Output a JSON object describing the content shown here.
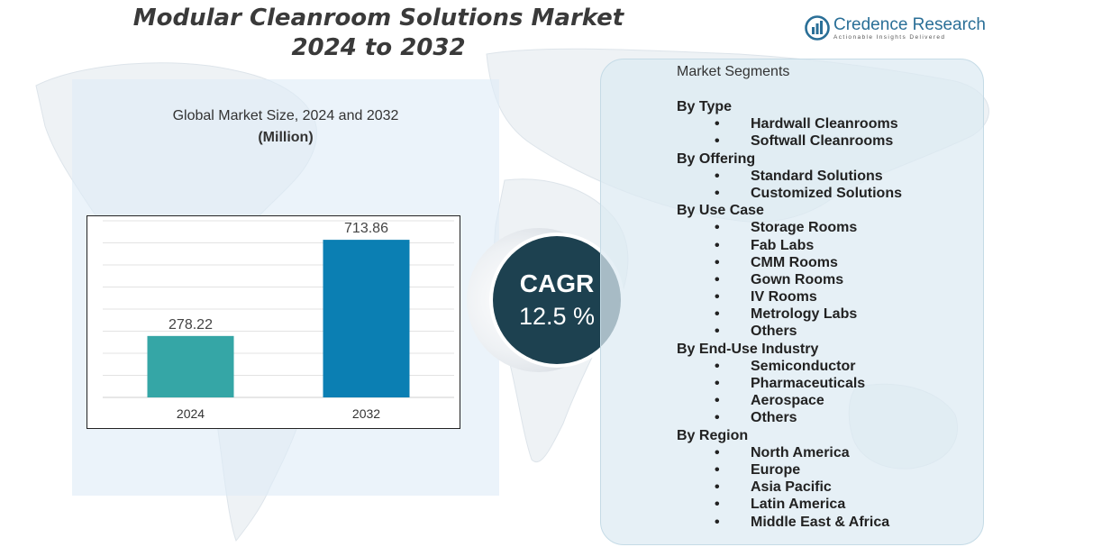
{
  "header": {
    "title_line1": "Modular Cleanroom Solutions Market",
    "title_line2": "2024 to 2032"
  },
  "logo": {
    "name": "Credence Research",
    "tagline": "Actionable Insights Delivered",
    "brand_color": "#2a6f97"
  },
  "chart_section": {
    "subtitle": "Global Market Size, 2024 and 2032",
    "unit": "(Million)"
  },
  "chart_data": {
    "type": "bar",
    "categories": [
      "2024",
      "2032"
    ],
    "values": [
      278.22,
      713.86
    ],
    "data_labels": [
      "278.22",
      "713.86"
    ],
    "colors": [
      "#35a6a6",
      "#0b7fb3"
    ],
    "ylim": [
      0,
      800
    ],
    "grid": true,
    "legend": "none",
    "title": "",
    "xlabel": "",
    "ylabel": ""
  },
  "cagr": {
    "label": "CAGR",
    "value": "12.5 %",
    "color": "#1d4150"
  },
  "segments": {
    "title": "Market Segments",
    "bullet": "•",
    "groups": [
      {
        "heading": "By Type",
        "items": [
          "Hardwall Cleanrooms",
          "Softwall Cleanrooms"
        ]
      },
      {
        "heading": "By Offering",
        "items": [
          "Standard Solutions",
          "Customized Solutions"
        ]
      },
      {
        "heading": "By Use Case",
        "items": [
          "Storage Rooms",
          "Fab Labs",
          "CMM Rooms",
          "Gown Rooms",
          "IV Rooms",
          "Metrology Labs",
          "Others"
        ]
      },
      {
        "heading": "By End-Use Industry",
        "items": [
          "Semiconductor",
          "Pharmaceuticals",
          "Aerospace",
          "Others"
        ]
      },
      {
        "heading": "By Region",
        "items": [
          "North America",
          "Europe",
          "Asia Pacific",
          "Latin America",
          "Middle East & Africa"
        ]
      }
    ]
  }
}
